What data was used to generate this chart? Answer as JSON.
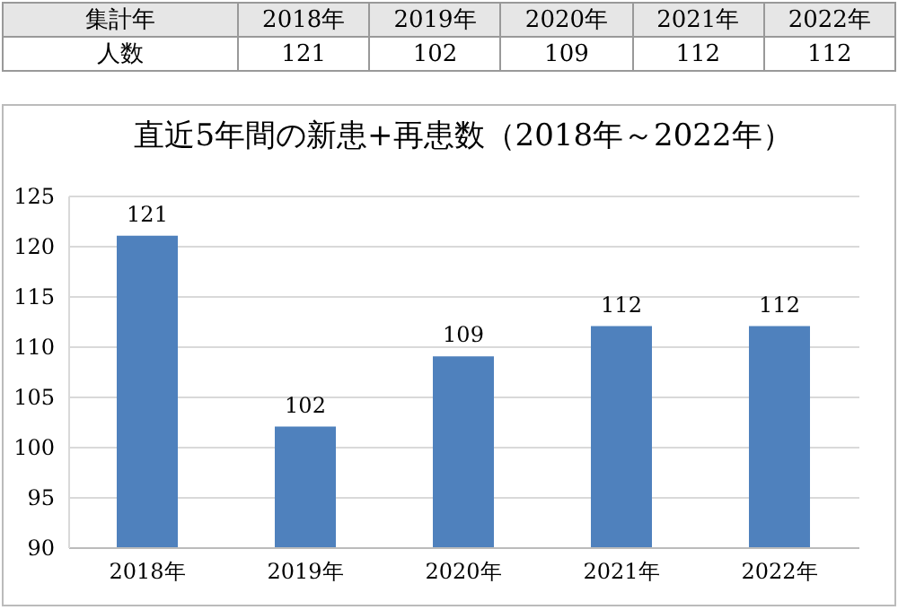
{
  "chart_data": {
    "type": "bar",
    "title": "直近5年間の新患+再患数（2018年～2022年）",
    "categories": [
      "2018年",
      "2019年",
      "2020年",
      "2021年",
      "2022年"
    ],
    "values": [
      121,
      102,
      109,
      112,
      112
    ],
    "color": "#4f81bd",
    "ylim": [
      90,
      125
    ],
    "yticks": [
      90,
      95,
      100,
      105,
      110,
      115,
      120,
      125
    ],
    "grid": "y",
    "data_labels": true,
    "annotations": [
      "集計年",
      "人数",
      "121",
      "102",
      "109",
      "112",
      "112"
    ]
  }
}
